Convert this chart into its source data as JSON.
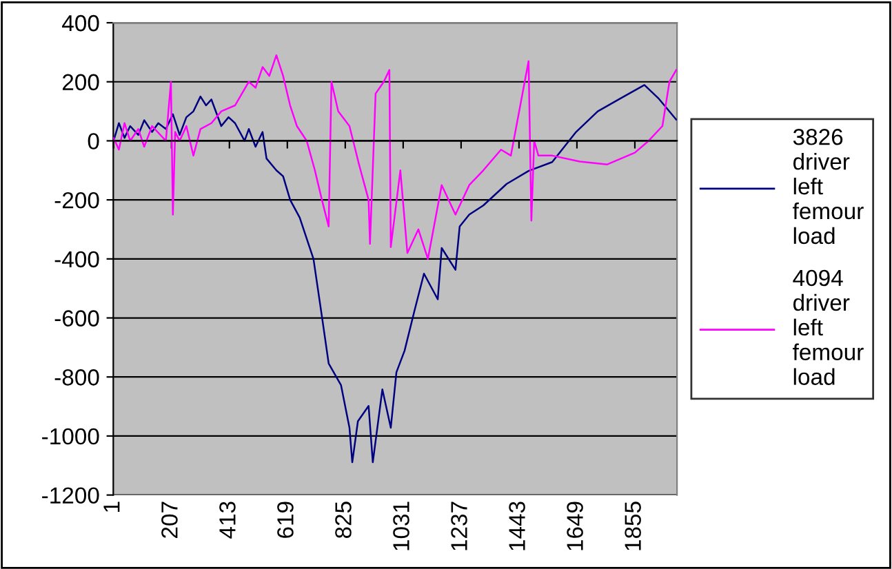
{
  "chart_data": {
    "type": "line",
    "xlim": [
      0,
      2005
    ],
    "xticks": [
      1,
      207,
      413,
      619,
      825,
      1031,
      1237,
      1443,
      1649,
      1855
    ],
    "ylim": [
      -1200,
      400
    ],
    "yticks": [
      -1200,
      -1000,
      -800,
      -600,
      -400,
      -200,
      0,
      200,
      400
    ],
    "grid": "y",
    "legend": "right",
    "marker": "none",
    "line_style": "solid",
    "series": [
      {
        "name": "3826 driver left femour load",
        "color": "#000080",
        "x": [
          1,
          20,
          40,
          60,
          89,
          110,
          138,
          160,
          187,
          212,
          236,
          260,
          285,
          310,
          330,
          349,
          384,
          410,
          433,
          467,
          482,
          506,
          531,
          545,
          580,
          604,
          629,
          663,
          712,
          742,
          766,
          810,
          840,
          850,
          870,
          908,
          923,
          957,
          987,
          1007,
          1036,
          1070,
          1105,
          1154,
          1168,
          1217,
          1232,
          1266,
          1316,
          1399,
          1477,
          1561,
          1644,
          1723,
          1806,
          1889,
          1938,
          2002
        ],
        "values": [
          0,
          60,
          10,
          50,
          20,
          70,
          30,
          60,
          40,
          90,
          20,
          80,
          100,
          150,
          120,
          140,
          50,
          80,
          60,
          0,
          40,
          -20,
          30,
          -60,
          -100,
          -120,
          -200,
          -260,
          -400,
          -595,
          -754,
          -828,
          -972,
          -1089,
          -950,
          -898,
          -1089,
          -842,
          -972,
          -784,
          -711,
          -580,
          -450,
          -537,
          -363,
          -437,
          -290,
          -250,
          -219,
          -146,
          -102,
          -72,
          28,
          100,
          145,
          189,
          145,
          72
        ]
      },
      {
        "name": "4094 driver left femour load",
        "color": "#ff00ff",
        "x": [
          1,
          20,
          40,
          60,
          89,
          110,
          138,
          187,
          205,
          212,
          220,
          236,
          260,
          285,
          310,
          349,
          384,
          433,
          482,
          506,
          531,
          555,
          580,
          604,
          629,
          653,
          688,
          717,
          742,
          766,
          776,
          800,
          840,
          874,
          908,
          913,
          933,
          962,
          982,
          987,
          1021,
          1046,
          1085,
          1119,
          1168,
          1217,
          1266,
          1316,
          1379,
          1414,
          1477,
          1487,
          1497,
          1512,
          1561,
          1659,
          1757,
          1855,
          1904,
          1953,
          1978,
          2002
        ],
        "values": [
          10,
          -30,
          60,
          0,
          40,
          -20,
          50,
          0,
          200,
          -250,
          30,
          0,
          50,
          -50,
          40,
          60,
          100,
          120,
          200,
          180,
          250,
          220,
          290,
          220,
          120,
          50,
          0,
          -100,
          -200,
          -290,
          200,
          100,
          50,
          -80,
          -200,
          -349,
          160,
          200,
          240,
          -360,
          -100,
          -380,
          -300,
          -400,
          -150,
          -250,
          -150,
          -100,
          -30,
          -50,
          270,
          -270,
          0,
          -50,
          -50,
          -70,
          -80,
          -40,
          0,
          50,
          200,
          240
        ]
      }
    ]
  }
}
